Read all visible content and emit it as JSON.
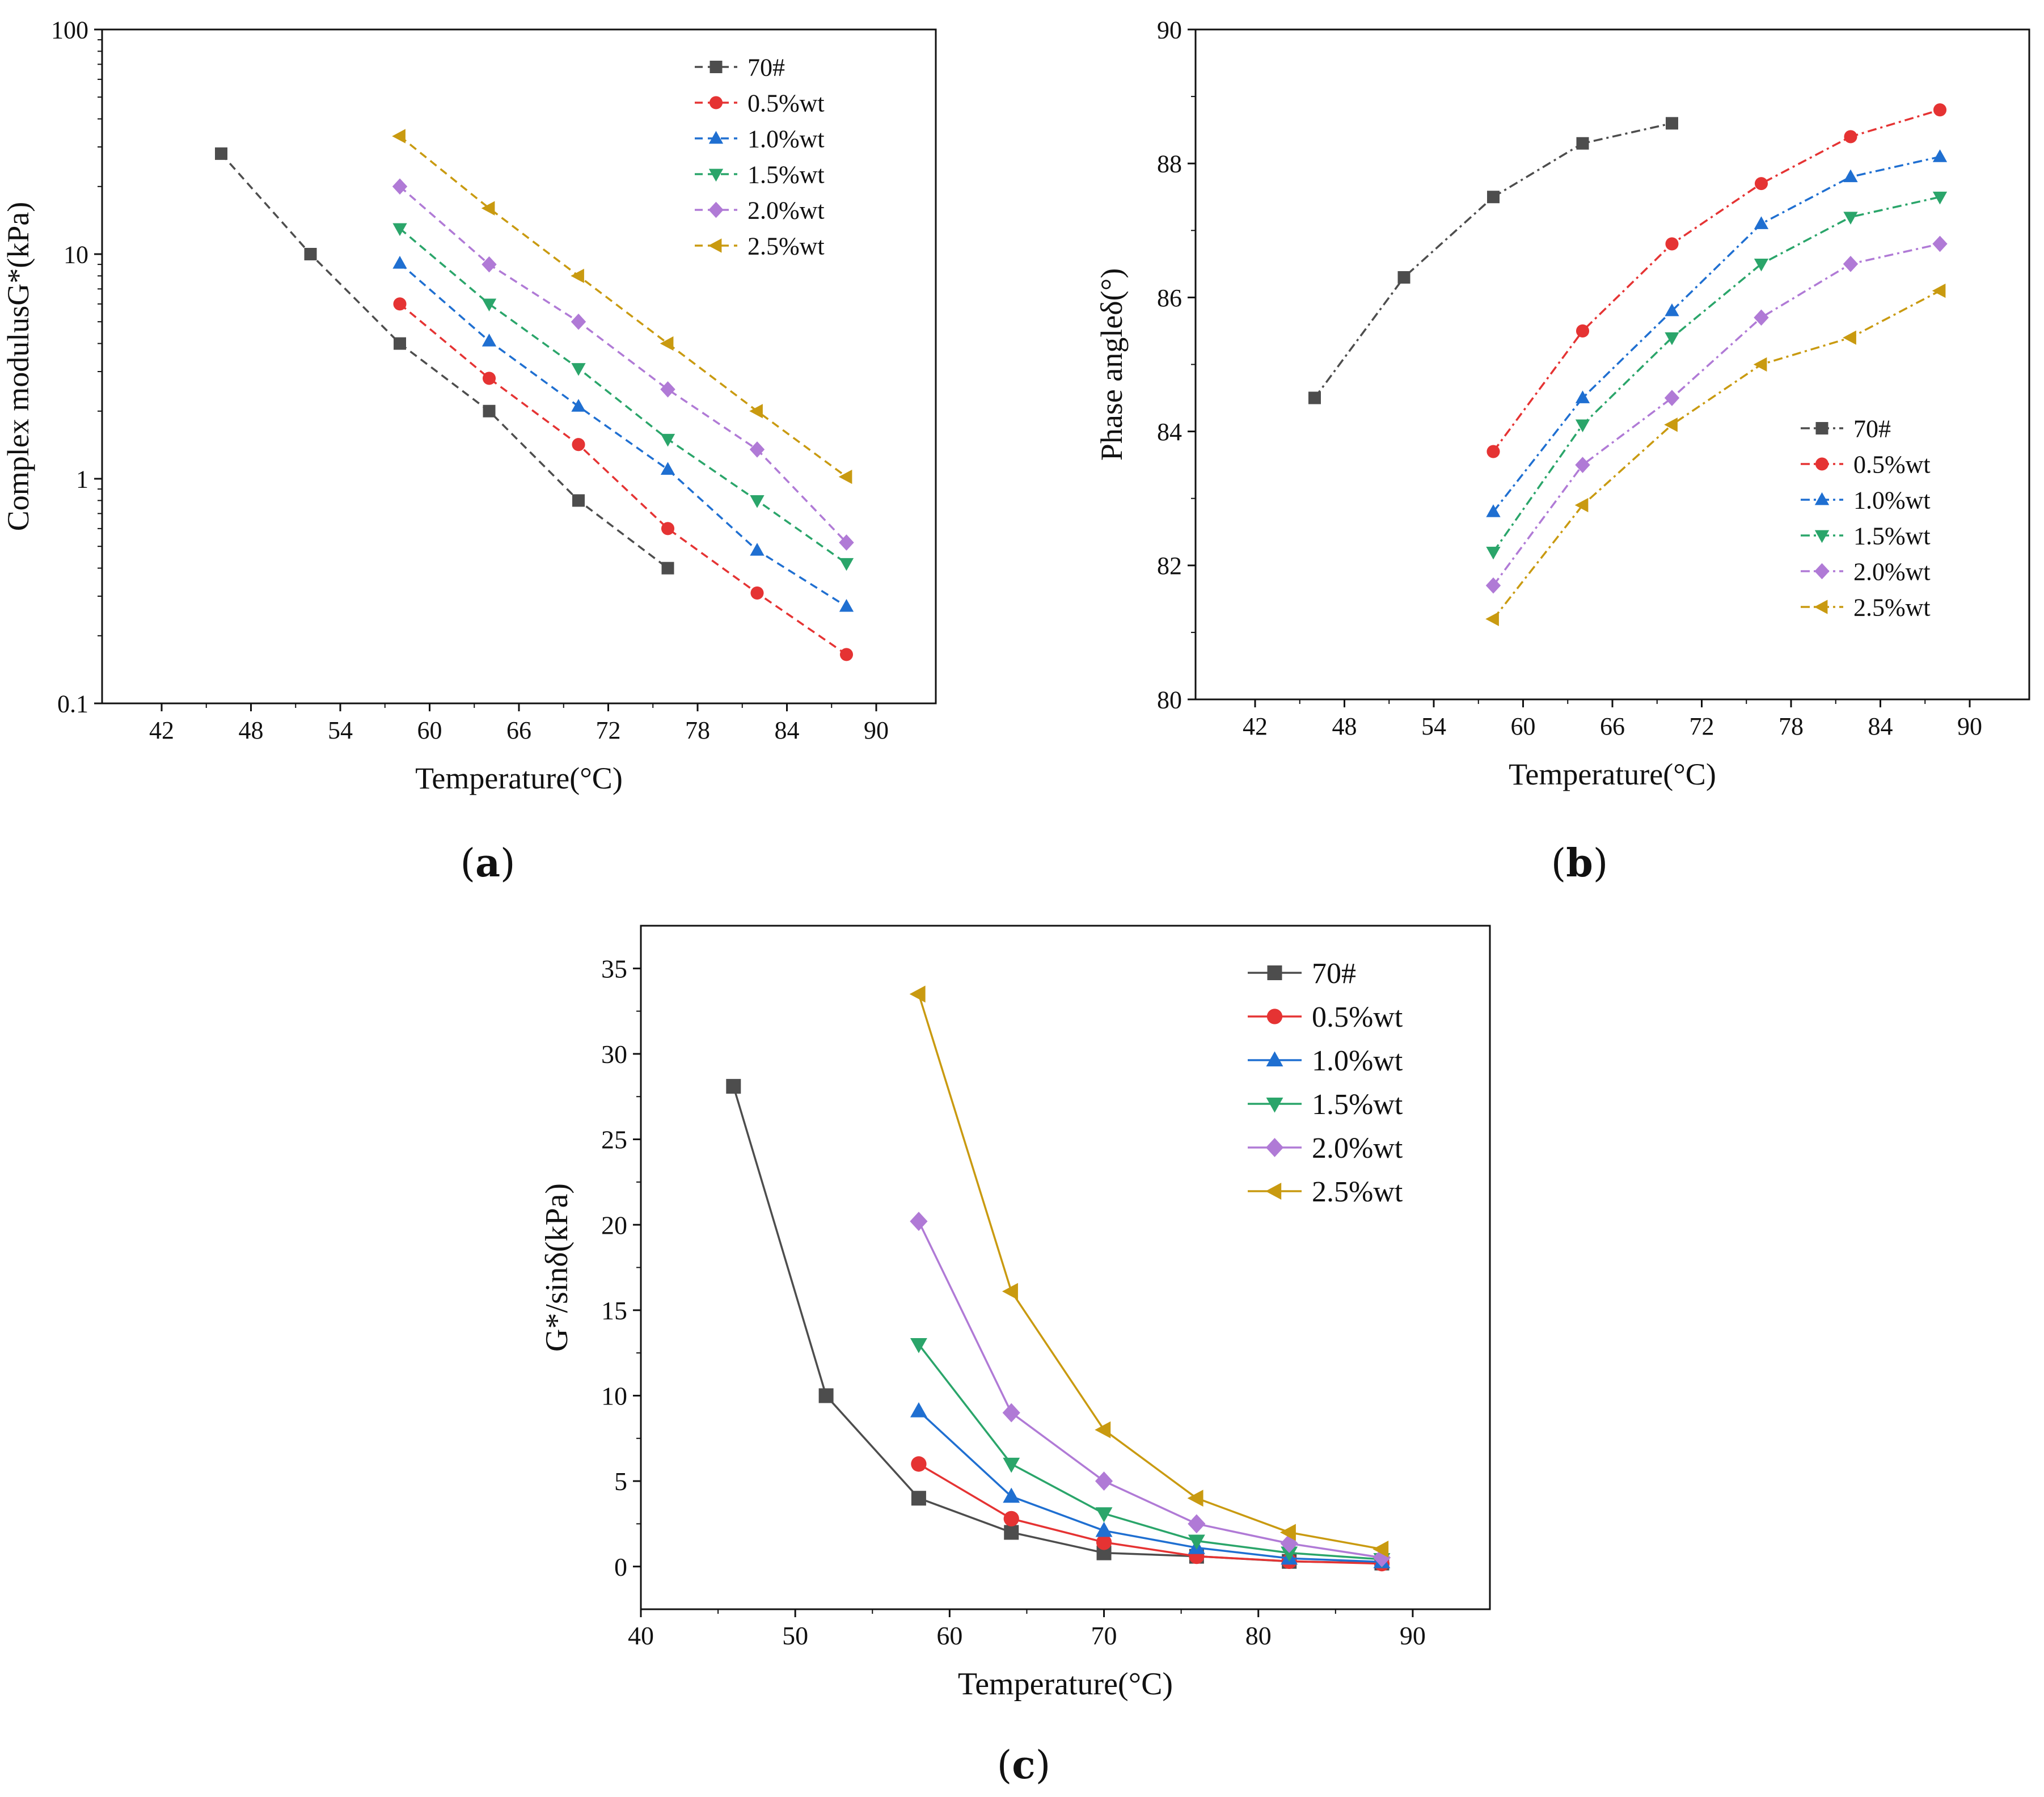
{
  "colors": {
    "70#": "#4d4d4d",
    "0.5%wt": "#e53333",
    "1.0%wt": "#1f6fd1",
    "1.5%wt": "#2aa56a",
    "2.0%wt": "#b07ad6",
    "2.5%wt": "#c99a10"
  },
  "captions": {
    "a": "a",
    "b": "b",
    "c": "c"
  },
  "chart_data": [
    {
      "id": "a",
      "type": "line",
      "line_style": "dashed",
      "yscale": "log",
      "xlabel": "Temperature(°C)",
      "ylabel": "Complex modulusG*(kPa)",
      "xlim": [
        38,
        94
      ],
      "ylim": [
        0.1,
        100
      ],
      "xticks": [
        42,
        48,
        54,
        60,
        66,
        72,
        78,
        84,
        90
      ],
      "yticks": [
        0.1,
        1,
        10,
        100
      ],
      "ytick_labels": [
        "0.1",
        "1",
        "10",
        "100"
      ],
      "legend_position": "top-right",
      "series": [
        {
          "name": "70#",
          "marker": "square",
          "x": [
            46,
            52,
            58,
            64,
            70,
            76
          ],
          "values": [
            28,
            10,
            4,
            2,
            0.8,
            0.4
          ]
        },
        {
          "name": "0.5%wt",
          "marker": "circle",
          "x": [
            58,
            64,
            70,
            76,
            82,
            88
          ],
          "values": [
            6,
            2.8,
            1.42,
            0.6,
            0.31,
            0.165
          ]
        },
        {
          "name": "1.0%wt",
          "marker": "triangle-up",
          "x": [
            58,
            64,
            70,
            76,
            82,
            88
          ],
          "values": [
            9.1,
            4.1,
            2.1,
            1.1,
            0.48,
            0.27
          ]
        },
        {
          "name": "1.5%wt",
          "marker": "triangle-down",
          "x": [
            58,
            64,
            70,
            76,
            82,
            88
          ],
          "values": [
            13,
            6,
            3.1,
            1.5,
            0.8,
            0.42
          ]
        },
        {
          "name": "2.0%wt",
          "marker": "diamond",
          "x": [
            58,
            64,
            70,
            76,
            82,
            88
          ],
          "values": [
            20,
            9,
            5,
            2.5,
            1.35,
            0.52
          ]
        },
        {
          "name": "2.5%wt",
          "marker": "triangle-left",
          "x": [
            58,
            64,
            70,
            76,
            82,
            88
          ],
          "values": [
            33.5,
            16,
            8,
            4,
            2,
            1.02
          ]
        }
      ]
    },
    {
      "id": "b",
      "type": "line",
      "line_style": "dash-dot",
      "xlabel": "Temperature(°C)",
      "ylabel": "Phase angleδ(°)",
      "xlim": [
        38,
        94
      ],
      "ylim": [
        80,
        90
      ],
      "xticks": [
        42,
        48,
        54,
        60,
        66,
        72,
        78,
        84,
        90
      ],
      "yticks": [
        80,
        82,
        84,
        86,
        88,
        90
      ],
      "ytick_labels": [
        "80",
        "82",
        "84",
        "86",
        "88",
        "90"
      ],
      "legend_position": "bottom-right",
      "series": [
        {
          "name": "70#",
          "marker": "square",
          "x": [
            46,
            52,
            58,
            64,
            70
          ],
          "values": [
            84.5,
            86.3,
            87.5,
            88.3,
            88.6
          ]
        },
        {
          "name": "0.5%wt",
          "marker": "circle",
          "x": [
            58,
            64,
            70,
            76,
            82,
            88
          ],
          "values": [
            83.7,
            85.5,
            86.8,
            87.7,
            88.4,
            88.8
          ]
        },
        {
          "name": "1.0%wt",
          "marker": "triangle-up",
          "x": [
            58,
            64,
            70,
            76,
            82,
            88
          ],
          "values": [
            82.8,
            84.5,
            85.8,
            87.1,
            87.8,
            88.1
          ]
        },
        {
          "name": "1.5%wt",
          "marker": "triangle-down",
          "x": [
            58,
            64,
            70,
            76,
            82,
            88
          ],
          "values": [
            82.2,
            84.1,
            85.4,
            86.5,
            87.2,
            87.5
          ]
        },
        {
          "name": "2.0%wt",
          "marker": "diamond",
          "x": [
            58,
            64,
            70,
            76,
            82,
            88
          ],
          "values": [
            81.7,
            83.5,
            84.5,
            85.7,
            86.5,
            86.8
          ]
        },
        {
          "name": "2.5%wt",
          "marker": "triangle-left",
          "x": [
            58,
            64,
            70,
            76,
            82,
            88
          ],
          "values": [
            81.2,
            82.9,
            84.1,
            85,
            85.4,
            86.1
          ]
        }
      ]
    },
    {
      "id": "c",
      "type": "line",
      "line_style": "solid",
      "xlabel": "Temperature(°C)",
      "ylabel": "G*/sinδ(kPa)",
      "xlim": [
        40,
        95
      ],
      "ylim": [
        -2.5,
        37.5
      ],
      "xticks": [
        40,
        50,
        60,
        70,
        80,
        90
      ],
      "yticks": [
        0,
        5,
        10,
        15,
        20,
        25,
        30,
        35
      ],
      "ytick_labels": [
        "0",
        "5",
        "10",
        "15",
        "20",
        "25",
        "30",
        "35"
      ],
      "legend_position": "top-right",
      "series": [
        {
          "name": "70#",
          "marker": "square",
          "x": [
            46,
            52,
            58,
            64,
            70,
            76,
            82,
            88
          ],
          "values": [
            28.1,
            10,
            4,
            2,
            0.8,
            0.6,
            0.3,
            0.2
          ]
        },
        {
          "name": "0.5%wt",
          "marker": "circle",
          "x": [
            58,
            64,
            70,
            76,
            82,
            88
          ],
          "values": [
            6,
            2.8,
            1.42,
            0.6,
            0.31,
            0.17
          ]
        },
        {
          "name": "1.0%wt",
          "marker": "triangle-up",
          "x": [
            58,
            64,
            70,
            76,
            82,
            88
          ],
          "values": [
            9.1,
            4.1,
            2.1,
            1.1,
            0.48,
            0.27
          ]
        },
        {
          "name": "1.5%wt",
          "marker": "triangle-down",
          "x": [
            58,
            64,
            70,
            76,
            82,
            88
          ],
          "values": [
            13,
            6,
            3.1,
            1.5,
            0.8,
            0.42
          ]
        },
        {
          "name": "2.0%wt",
          "marker": "diamond",
          "x": [
            58,
            64,
            70,
            76,
            82,
            88
          ],
          "values": [
            20.2,
            9,
            5,
            2.5,
            1.35,
            0.52
          ]
        },
        {
          "name": "2.5%wt",
          "marker": "triangle-left",
          "x": [
            58,
            64,
            70,
            76,
            82,
            88
          ],
          "values": [
            33.5,
            16.1,
            8,
            4,
            2,
            1.02
          ]
        }
      ]
    }
  ]
}
